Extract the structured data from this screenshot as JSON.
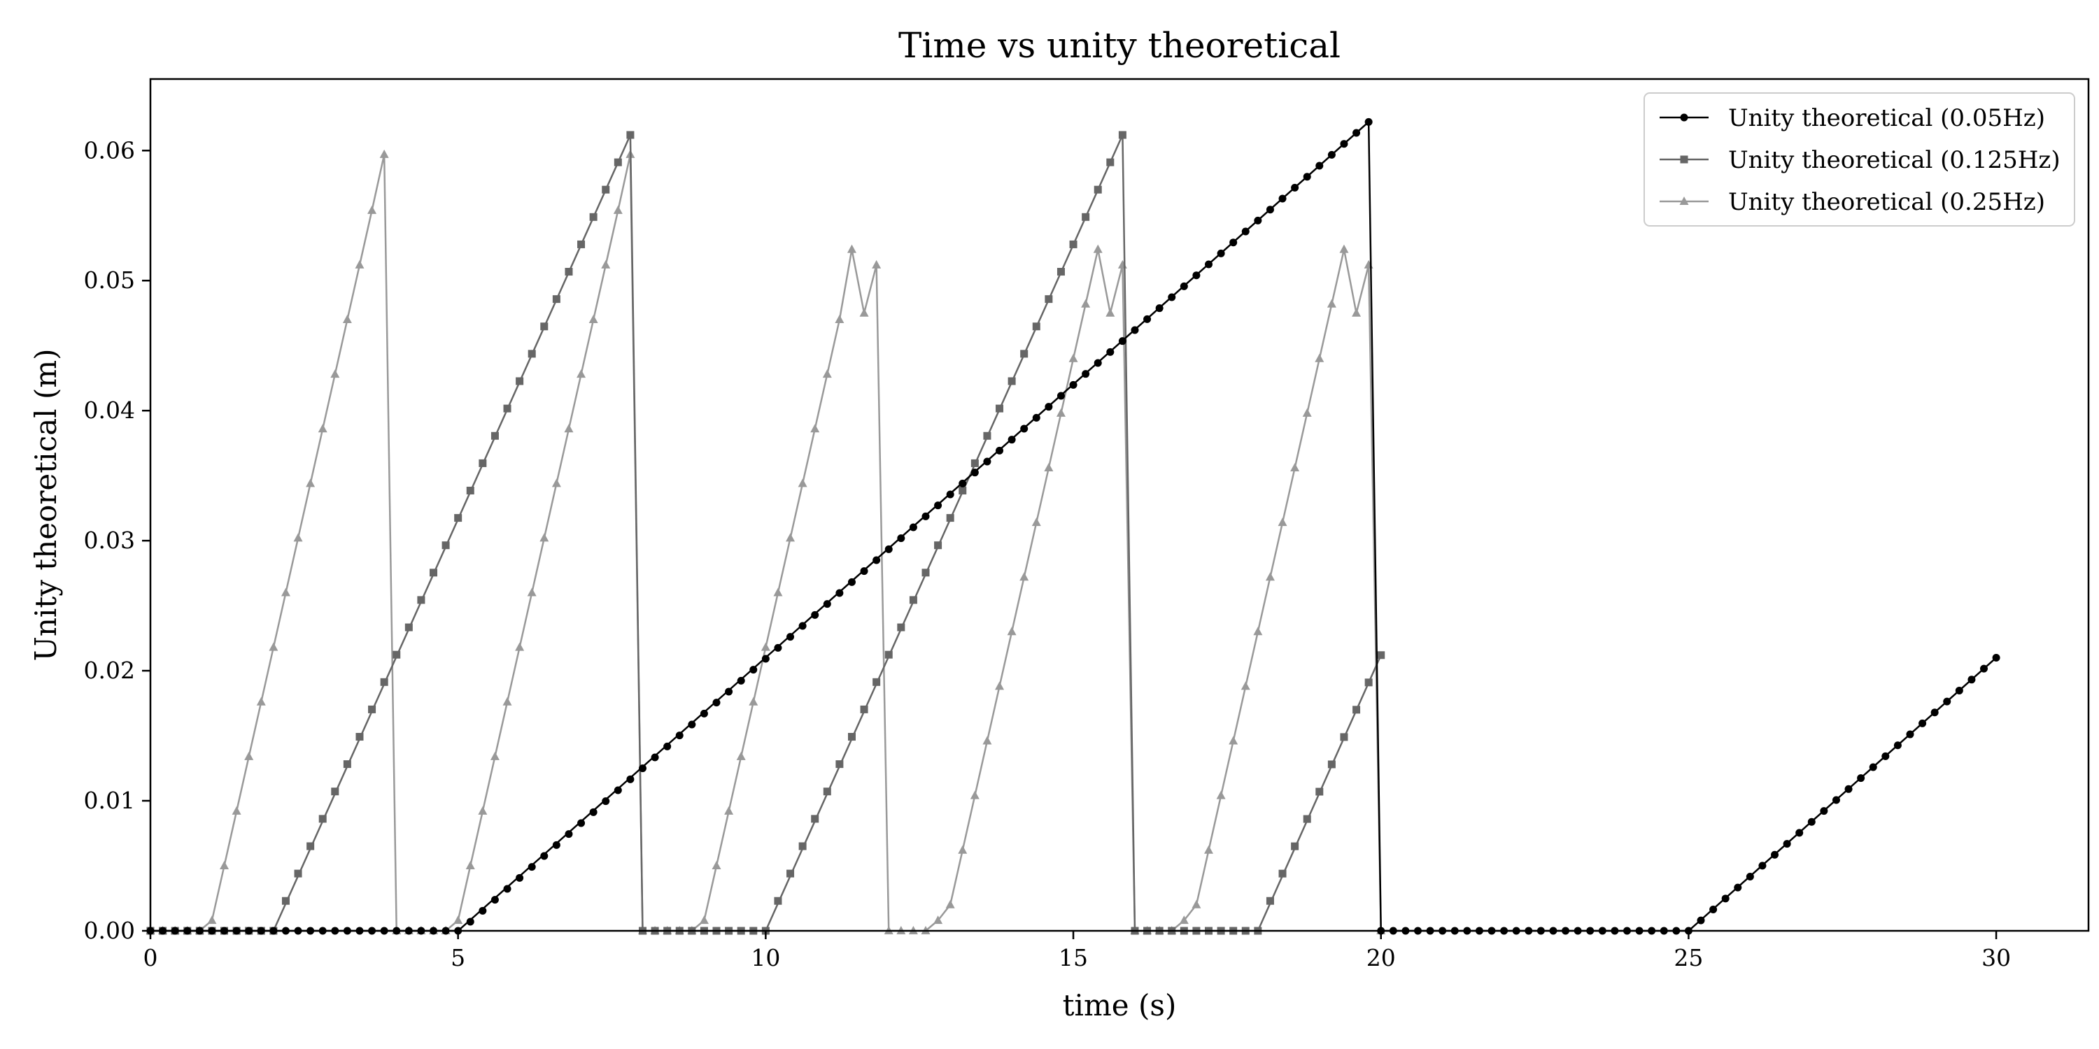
{
  "chart_data": {
    "type": "line",
    "title": "Time vs unity theoretical",
    "xlabel": "time (s)",
    "ylabel": "Unity theoretical (m)",
    "xlim": [
      0,
      31.5
    ],
    "ylim": [
      0,
      0.0655
    ],
    "xticks": [
      0,
      5,
      10,
      15,
      20,
      25,
      30
    ],
    "xtick_labels": [
      "0",
      "5",
      "10",
      "15",
      "20",
      "25",
      "30"
    ],
    "yticks": [
      0,
      0.01,
      0.02,
      0.03,
      0.04,
      0.05,
      0.06
    ],
    "ytick_labels": [
      "0.00",
      "0.01",
      "0.02",
      "0.03",
      "0.04",
      "0.05",
      "0.06"
    ],
    "grid": false,
    "legend_position": "top-right",
    "series": [
      {
        "name": "Unity theoretical (0.05Hz)",
        "color": "#000000",
        "marker": "circle",
        "segments": [
          {
            "x": [
              0,
              5,
              5,
              19.8,
              19.8,
              20,
              25,
              30
            ],
            "y": [
              0,
              0,
              0,
              0.0622,
              0.0622,
              0,
              0,
              0.021
            ]
          }
        ],
        "markers": [
          {
            "x_start": 0,
            "x_end": 5,
            "count": 26,
            "y_start": 0,
            "y_end": 0
          },
          {
            "x_start": 5.2,
            "x_end": 19.8,
            "count": 74,
            "y_start": 0.0007,
            "y_end": 0.0622
          },
          {
            "x_start": 20,
            "x_end": 25,
            "count": 26,
            "y_start": 0,
            "y_end": 0
          },
          {
            "x_start": 25.2,
            "x_end": 30,
            "count": 25,
            "y_start": 0.0008,
            "y_end": 0.021
          }
        ]
      },
      {
        "name": "Unity theoretical (0.125Hz)",
        "color": "#666666",
        "marker": "square",
        "segments": [
          {
            "x": [
              0,
              2,
              7.8,
              8,
              10,
              15.8,
              16,
              18,
              20
            ],
            "y": [
              0,
              0,
              0.0612,
              0,
              0,
              0.0612,
              0,
              0,
              0.0212
            ]
          }
        ],
        "markers": [
          {
            "x_start": 0,
            "x_end": 2,
            "count": 11,
            "y_start": 0,
            "y_end": 0
          },
          {
            "x_start": 2.2,
            "x_end": 7.8,
            "count": 29,
            "y_start": 0.0023,
            "y_end": 0.0612
          },
          {
            "x_start": 8,
            "x_end": 10,
            "count": 11,
            "y_start": 0,
            "y_end": 0
          },
          {
            "x_start": 10.2,
            "x_end": 15.8,
            "count": 29,
            "y_start": 0.0023,
            "y_end": 0.0612
          },
          {
            "x_start": 16,
            "x_end": 18,
            "count": 11,
            "y_start": 0,
            "y_end": 0
          },
          {
            "x_start": 18.2,
            "x_end": 20,
            "count": 10,
            "y_start": 0.0023,
            "y_end": 0.0212
          }
        ]
      },
      {
        "name": "Unity theoretical (0.25Hz)",
        "color": "#999999",
        "marker": "triangle",
        "x": [
          0,
          0.2,
          0.4,
          0.6,
          0.8,
          1.0,
          1.2,
          1.4,
          1.6,
          1.8,
          2.0,
          2.2,
          2.4,
          2.6,
          2.8,
          3.0,
          3.2,
          3.4,
          3.6,
          3.8,
          4.0,
          4.2,
          4.4,
          4.6,
          4.8,
          5.0,
          5.2,
          5.4,
          5.6,
          5.8,
          6.0,
          6.2,
          6.4,
          6.6,
          6.8,
          7.0,
          7.2,
          7.4,
          7.6,
          7.8,
          8.0,
          8.2,
          8.4,
          8.6,
          8.8,
          9.0,
          9.2,
          9.4,
          9.6,
          9.8,
          10.0,
          10.2,
          10.4,
          10.6,
          10.8,
          11.0,
          11.2,
          11.4,
          11.6,
          11.8,
          12.0,
          12.2,
          12.4,
          12.6,
          12.8,
          13.0,
          13.2,
          13.4,
          13.6,
          13.8,
          14.0,
          14.2,
          14.4,
          14.6,
          14.8,
          15.0,
          15.2,
          15.4,
          15.6,
          15.8,
          16.0,
          16.2,
          16.4,
          16.6,
          16.8,
          17.0,
          17.2,
          17.4,
          17.6,
          17.8,
          18.0,
          18.2,
          18.4,
          18.6,
          18.8,
          19.0,
          19.2,
          19.4,
          19.6,
          19.8,
          20.0
        ],
        "y": [
          0,
          0,
          0,
          0,
          0,
          0.0008,
          0.005,
          0.0092,
          0.0134,
          0.0176,
          0.0218,
          0.026,
          0.0302,
          0.0344,
          0.0386,
          0.0428,
          0.047,
          0.0512,
          0.0554,
          0.0597,
          0,
          0,
          0,
          0,
          0,
          0.0008,
          0.005,
          0.0092,
          0.0134,
          0.0176,
          0.0218,
          0.026,
          0.0302,
          0.0344,
          0.0386,
          0.0428,
          0.047,
          0.0512,
          0.0554,
          0.0597,
          0,
          0,
          0,
          0,
          0,
          0.0008,
          0.005,
          0.0092,
          0.0134,
          0.0176,
          0.0218,
          0.026,
          0.0302,
          0.0344,
          0.0386,
          0.0428,
          0.047,
          0.0524,
          0.0475,
          0.0512,
          0,
          0,
          0,
          0,
          0.0008,
          0.002,
          0.0062,
          0.0104,
          0.0146,
          0.0188,
          0.023,
          0.0272,
          0.0314,
          0.0356,
          0.0398,
          0.044,
          0.0482,
          0.0524,
          0.0475,
          0.0512,
          0,
          0,
          0,
          0,
          0.0008,
          0.002,
          0.0062,
          0.0104,
          0.0146,
          0.0188,
          0.023,
          0.0272,
          0.0314,
          0.0356,
          0.0398,
          0.044,
          0.0482,
          0.0524,
          0.0475,
          0.0512,
          0
        ]
      }
    ]
  }
}
